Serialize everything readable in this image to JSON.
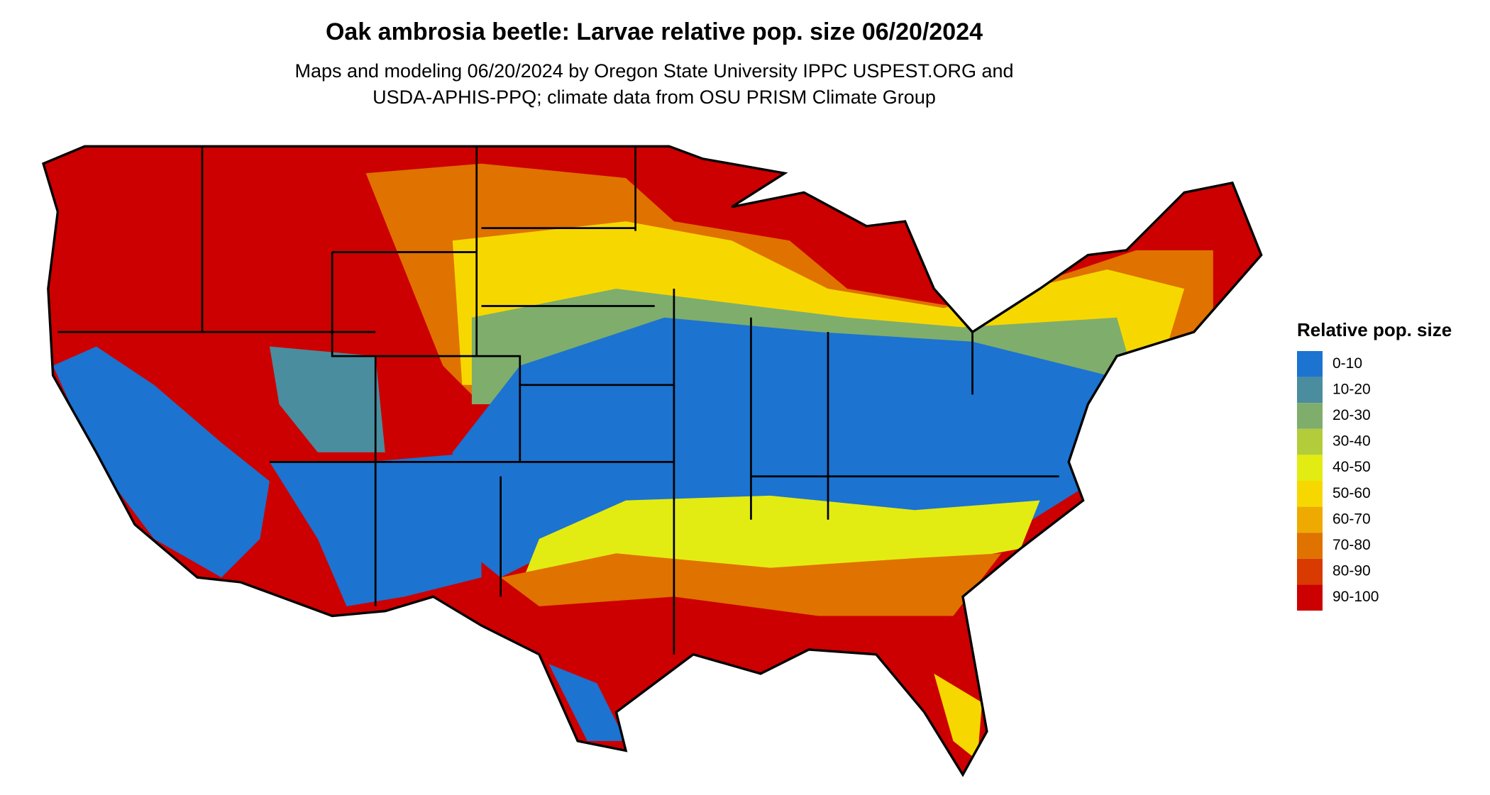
{
  "header": {
    "title": "Oak ambrosia beetle: Larvae relative pop. size 06/20/2024",
    "subtitle_lines": [
      "Maps and modeling 06/20/2024 by Oregon State University IPPC USPEST.ORG and",
      "USDA-APHIS-PPQ; climate data from OSU PRISM Climate Group"
    ]
  },
  "legend": {
    "title": "Relative pop. size",
    "items": [
      {
        "label": "0-10",
        "color": "#1c73d0"
      },
      {
        "label": "10-20",
        "color": "#4a8d9e"
      },
      {
        "label": "20-30",
        "color": "#7fad6c"
      },
      {
        "label": "30-40",
        "color": "#b3cd3a"
      },
      {
        "label": "40-50",
        "color": "#e3ec12"
      },
      {
        "label": "50-60",
        "color": "#f6d800"
      },
      {
        "label": "60-70",
        "color": "#eeaa00"
      },
      {
        "label": "70-80",
        "color": "#e07200"
      },
      {
        "label": "80-90",
        "color": "#d93a00"
      },
      {
        "label": "90-100",
        "color": "#cc0000"
      }
    ]
  }
}
